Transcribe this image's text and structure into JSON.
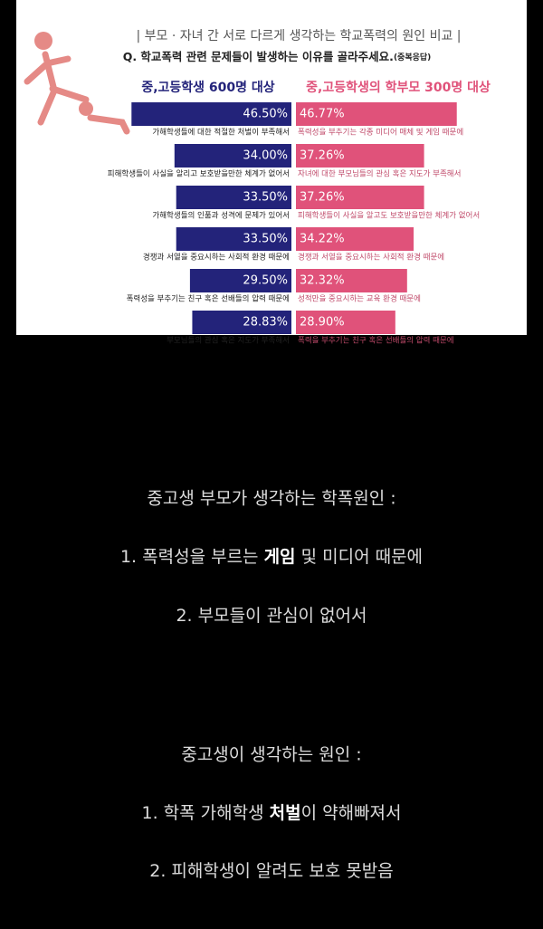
{
  "chart_data": {
    "type": "bar",
    "title": "| 부모 · 자녀 간 서로 다르게 생각하는 학교폭력의 원인 비교 |",
    "subtitle": "Q. 학교폭력 관련 문제들이 발생하는 이유를 골라주세요.",
    "note": "(중복응답)",
    "series": [
      {
        "name": "중,고등학생 600명 대상",
        "color": "#23237a",
        "categories": [
          "가해학생들에 대한 적절한 처벌이 부족해서",
          "피해학생들이 사실을 알리고 보호받을만한 체계가 없어서",
          "가해학생들의 인품과 성격에 문제가 있어서",
          "경쟁과 서열을 중요시하는 사회적 환경 때문에",
          "폭력성을 부추기는 친구 혹은 선배들의 압력 때문에",
          "부모님들의 관심 혹은 지도가 부족해서"
        ],
        "values": [
          46.5,
          34,
          33.5,
          33.5,
          29.5,
          28.83
        ],
        "value_labels": [
          "46.50%",
          "34.00%",
          "33.50%",
          "33.50%",
          "29.50%",
          "28.83%"
        ]
      },
      {
        "name": "중,고등학생의 학부모 300명 대상",
        "color": "#e0527a",
        "categories": [
          "폭력성을 부추기는 각종 미디어 매체 및 게임 때문에",
          "자녀에 대한 부모님들의 관심 혹은 지도가 부족해서",
          "피해학생들이 사실을 알고도 보호받을만한 체계가 없어서",
          "경쟁과 서열을 중요시하는 사회적 환경 때문에",
          "성적만을 중요시하는 교육 환경 때문에",
          "폭력을 부추기는 친구 혹은 선배들의 압력 때문에"
        ],
        "values": [
          46.77,
          37.26,
          37.26,
          34.22,
          32.32,
          28.9
        ],
        "value_labels": [
          "46.77%",
          "37.26%",
          "37.26%",
          "34.22%",
          "32.32%",
          "28.90%"
        ]
      }
    ]
  },
  "post": {
    "parent_heading": "중고생 부모가 생각하는 학폭원인 :",
    "parent_reasons": [
      [
        "1. 폭력성을 부르는 ",
        "게임",
        " 및 미디어 때문에"
      ],
      [
        "2. 부모들이 관심이 없어서"
      ]
    ],
    "student_heading": "중고생이 생각하는 원인 :",
    "student_reasons": [
      [
        "1. 학폭 가해학생 ",
        "처벌",
        "이 약해빠져서"
      ],
      [
        "2. 피해학생이 알려도 보호 못받음"
      ]
    ]
  }
}
